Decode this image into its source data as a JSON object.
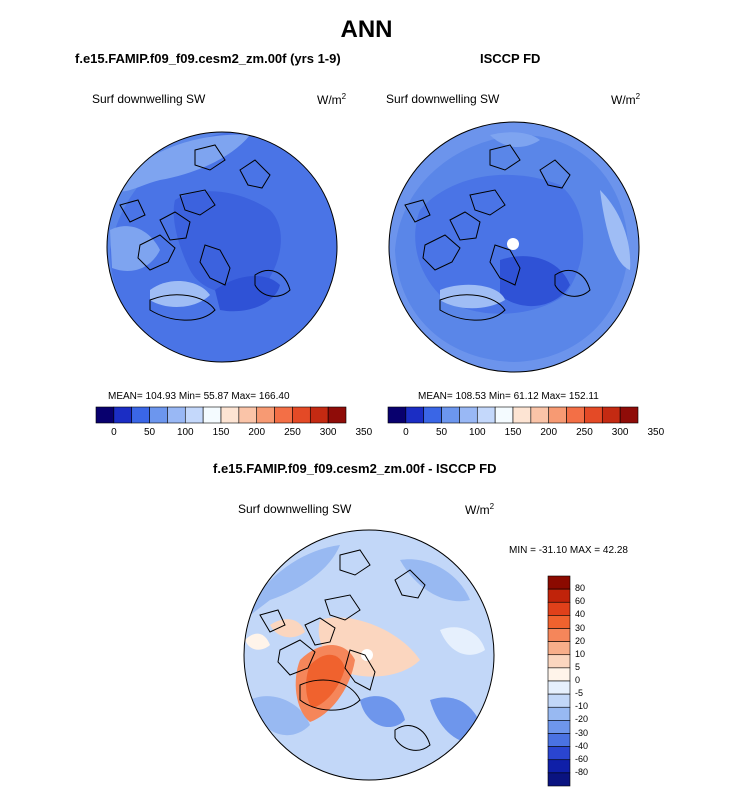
{
  "title": "ANN",
  "panels": [
    {
      "name": "model",
      "title": "f.e15.FAMIP.f09_f09.cesm2_zm.00f (yrs 1-9)",
      "variable": "Surf downwelling SW",
      "units_base": "W/m",
      "units_exp": "2",
      "stats": "MEAN= 104.93  Min=  55.87  Max= 166.40"
    },
    {
      "name": "obs",
      "title": "ISCCP FD",
      "variable": "Surf downwelling SW",
      "units_base": "W/m",
      "units_exp": "2",
      "stats": "MEAN= 108.53  Min=  61.12  Max= 152.11"
    },
    {
      "name": "diff",
      "title": "f.e15.FAMIP.f09_f09.cesm2_zm.00f - ISCCP FD",
      "variable": "Surf downwelling SW",
      "units_base": "W/m",
      "units_exp": "2",
      "stats": "MIN = -31.10 MAX =  42.28"
    }
  ],
  "chart_data": [
    {
      "type": "heatmap",
      "projection": "north-polar-stereographic",
      "title": "f.e15.FAMIP.f09_f09.cesm2_zm.00f (yrs 1-9)",
      "variable": "Surf downwelling SW",
      "units": "W/m2",
      "mean": 104.93,
      "min": 55.87,
      "max": 166.4,
      "colorbar_ticks": [
        "0",
        "50",
        "100",
        "150",
        "200",
        "250",
        "300",
        "350"
      ],
      "colorbar_colors": [
        "#08006e",
        "#1b2dc4",
        "#3a66e6",
        "#6c96ee",
        "#99b8f5",
        "#c4d8fb",
        "#f4fbff",
        "#fde4d3",
        "#fac4a8",
        "#f79a73",
        "#f36f46",
        "#e44a26",
        "#c42a12",
        "#8f0c08"
      ]
    },
    {
      "type": "heatmap",
      "projection": "north-polar-stereographic",
      "title": "ISCCP FD",
      "variable": "Surf downwelling SW",
      "units": "W/m2",
      "mean": 108.53,
      "min": 61.12,
      "max": 152.11,
      "colorbar_ticks": [
        "0",
        "50",
        "100",
        "150",
        "200",
        "250",
        "300",
        "350"
      ],
      "colorbar_colors": [
        "#08006e",
        "#1b2dc4",
        "#3a66e6",
        "#6c96ee",
        "#99b8f5",
        "#c4d8fb",
        "#f4fbff",
        "#fde4d3",
        "#fac4a8",
        "#f79a73",
        "#f36f46",
        "#e44a26",
        "#c42a12",
        "#8f0c08"
      ]
    },
    {
      "type": "heatmap",
      "projection": "north-polar-stereographic",
      "title": "f.e15.FAMIP.f09_f09.cesm2_zm.00f - ISCCP FD",
      "variable": "Surf downwelling SW",
      "units": "W/m2",
      "min": -31.1,
      "max": 42.28,
      "colorbar_ticks": [
        "80",
        "60",
        "40",
        "30",
        "20",
        "10",
        "5",
        "0",
        "-5",
        "-10",
        "-20",
        "-30",
        "-40",
        "-60",
        "-80"
      ],
      "colorbar_colors": [
        "#8b0a00",
        "#c0230a",
        "#e0401a",
        "#f0622e",
        "#f5865a",
        "#f8ae8a",
        "#fbd6bf",
        "#fff4ea",
        "#e6f0fd",
        "#c2d7f8",
        "#98b9f2",
        "#6e96ec",
        "#4a72e2",
        "#2a45d0",
        "#0f1fa8",
        "#0a1380"
      ]
    }
  ]
}
